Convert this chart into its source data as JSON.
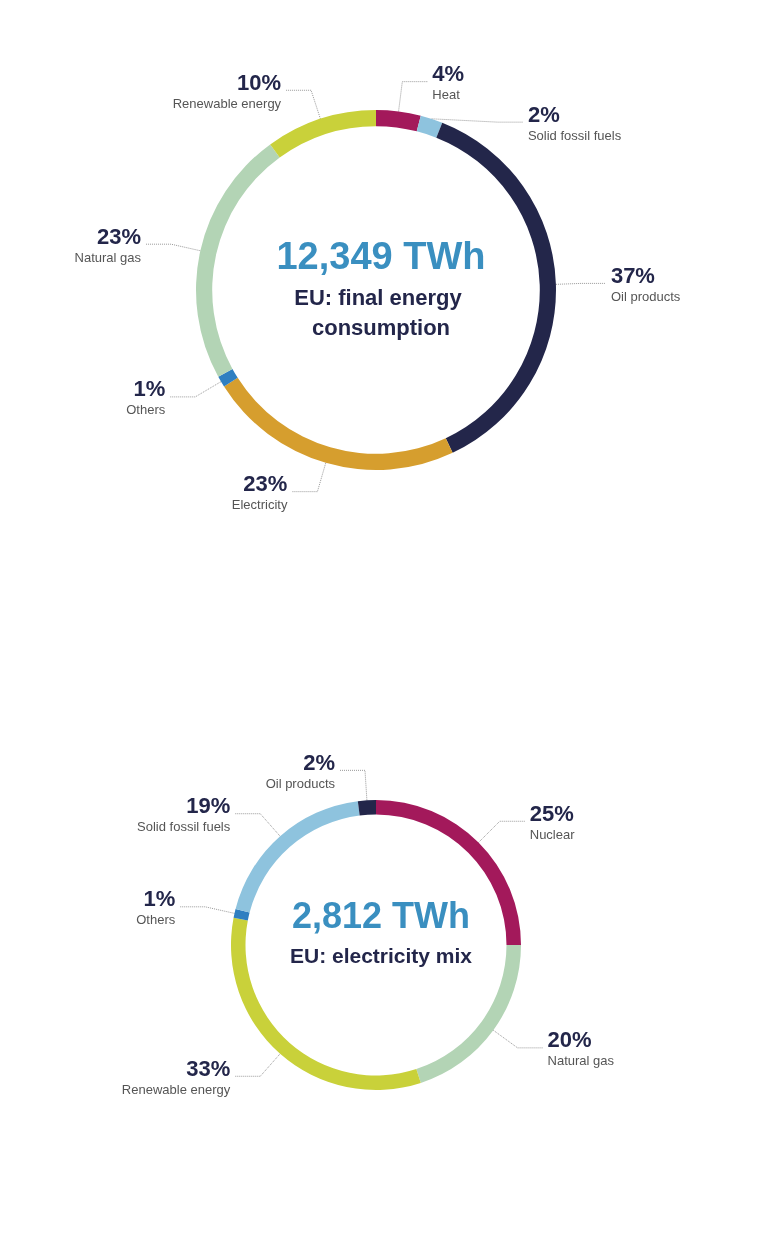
{
  "chart_data": [
    {
      "type": "donut",
      "title": "12,349 TWh",
      "subtitle": "EU: final energy consumption",
      "categories": [
        "Heat",
        "Solid fossil fuels",
        "Oil products",
        "Electricity",
        "Others",
        "Natural gas",
        "Renewable energy"
      ],
      "values": [
        4,
        2,
        37,
        23,
        1,
        23,
        10
      ],
      "value_labels": [
        "4%",
        "2%",
        "37%",
        "23%",
        "1%",
        "23%",
        "10%"
      ],
      "colors": [
        "#a3195b",
        "#8ec3de",
        "#23264a",
        "#d69e2e",
        "#2f7fc1",
        "#b3d4b5",
        "#c9d13a"
      ]
    },
    {
      "type": "donut",
      "title": "2,812 TWh",
      "subtitle": "EU: electricity mix",
      "categories": [
        "Nuclear",
        "Natural gas",
        "Renewable energy",
        "Others",
        "Solid fossil fuels",
        "Oil products"
      ],
      "values": [
        25,
        20,
        33,
        1,
        19,
        2
      ],
      "value_labels": [
        "25%",
        "20%",
        "33%",
        "1%",
        "19%",
        "2%"
      ],
      "colors": [
        "#a3195b",
        "#b3d4b5",
        "#c9d13a",
        "#2f7fc1",
        "#8ec3de",
        "#23264a"
      ]
    }
  ]
}
